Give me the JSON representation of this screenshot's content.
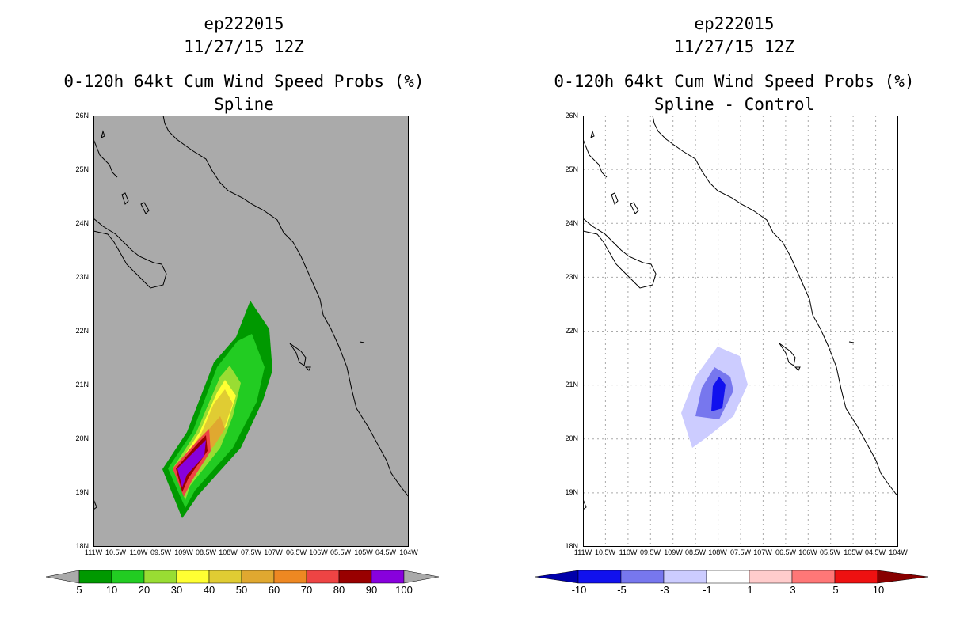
{
  "left_panel": {
    "storm_id": "ep222015",
    "datetime": "11/27/15 12Z",
    "product": "0-120h 64kt Cum Wind Speed Probs (%)",
    "subtitle": "Spline",
    "lat_ticks": [
      "26N",
      "25N",
      "24N",
      "23N",
      "22N",
      "21N",
      "20N",
      "19N",
      "18N"
    ],
    "lon_ticks": [
      "111W",
      "10.5W",
      "110W",
      "09.5W",
      "109W",
      "08.5W",
      "108W",
      "07.5W",
      "107W",
      "06.5W",
      "106W",
      "05.5W",
      "105W",
      "04.5W",
      "104W"
    ],
    "colorbar": {
      "colors": [
        "#009900",
        "#22cc22",
        "#99dd33",
        "#ffff33",
        "#e0cc33",
        "#e0a830",
        "#ee8822",
        "#ee4444",
        "#990000",
        "#8800dd"
      ],
      "labels": [
        "5",
        "10",
        "20",
        "30",
        "40",
        "50",
        "60",
        "70",
        "80",
        "90",
        "100"
      ]
    },
    "background_color": "#aaaaaa"
  },
  "right_panel": {
    "storm_id": "ep222015",
    "datetime": "11/27/15 12Z",
    "product": "0-120h 64kt Cum Wind Speed Probs (%)",
    "subtitle": "Spline - Control",
    "lat_ticks": [
      "26N",
      "25N",
      "24N",
      "23N",
      "22N",
      "21N",
      "20N",
      "19N",
      "18N"
    ],
    "lon_ticks": [
      "111W",
      "10.5W",
      "110W",
      "09.5W",
      "109W",
      "08.5W",
      "108W",
      "07.5W",
      "107W",
      "06.5W",
      "106W",
      "05.5W",
      "105W",
      "04.5W",
      "104W"
    ],
    "colorbar": {
      "colors": [
        "#0000aa",
        "#1111ee",
        "#7777ee",
        "#ccccff",
        "#ffffff",
        "#ffcccc",
        "#ff7777",
        "#ee1111",
        "#880000"
      ],
      "labels": [
        "-10",
        "-5",
        "-3",
        "-1",
        "1",
        "3",
        "5",
        "10"
      ]
    },
    "background_color": "#ffffff"
  }
}
